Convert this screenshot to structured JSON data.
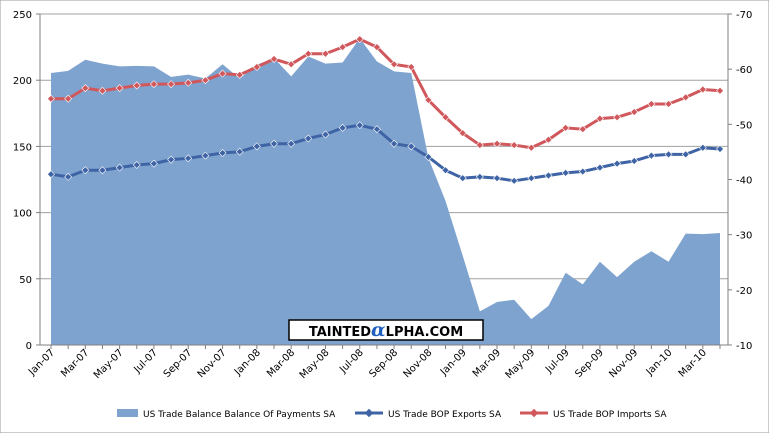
{
  "chart_data": {
    "type": "area+line",
    "categories": [
      "Jan-07",
      "Feb-07",
      "Mar-07",
      "Apr-07",
      "May-07",
      "Jun-07",
      "Jul-07",
      "Aug-07",
      "Sep-07",
      "Oct-07",
      "Nov-07",
      "Dec-07",
      "Jan-08",
      "Feb-08",
      "Mar-08",
      "Apr-08",
      "May-08",
      "Jun-08",
      "Jul-08",
      "Aug-08",
      "Sep-08",
      "Oct-08",
      "Nov-08",
      "Dec-08",
      "Jan-09",
      "Feb-09",
      "Mar-09",
      "Apr-09",
      "May-09",
      "Jun-09",
      "Jul-09",
      "Aug-09",
      "Sep-09",
      "Oct-09",
      "Nov-09",
      "Dec-09",
      "Jan-10",
      "Feb-10",
      "Mar-10",
      "Apr-10"
    ],
    "x_tick_labels": [
      "Jan-07",
      "Mar-07",
      "May-07",
      "Jul-07",
      "Sep-07",
      "Nov-07",
      "Jan-08",
      "Mar-08",
      "May-08",
      "Jul-08",
      "Sep-08",
      "Nov-08",
      "Jan-09",
      "Mar-09",
      "May-09",
      "Jul-09",
      "Sep-09",
      "Nov-09",
      "Jan-10",
      "Mar-10"
    ],
    "y_left": {
      "min": 0,
      "max": 250,
      "ticks": [
        "0",
        "50",
        "100",
        "150",
        "200",
        "250"
      ]
    },
    "y_right": {
      "min": -10,
      "max": -70,
      "ticks": [
        "-10",
        "-20",
        "-30",
        "-40",
        "-50",
        "-60",
        "-70"
      ]
    },
    "grid": "horizontal",
    "legend_position": "bottom",
    "series": [
      {
        "name": "US Trade Balance Balance Of Payments SA",
        "kind": "area",
        "axis": "right",
        "color": "#7fa3cf",
        "values": [
          -59.3,
          -59.7,
          -61.7,
          -61.0,
          -60.5,
          -60.6,
          -60.5,
          -58.6,
          -59.0,
          -58.3,
          -60.9,
          -58.3,
          -60.8,
          -62.0,
          -58.7,
          -62.3,
          -61.0,
          -61.2,
          -65.6,
          -61.4,
          -59.6,
          -59.3,
          -43.9,
          -36.1,
          -26.2,
          -16.1,
          -17.8,
          -18.2,
          -14.7,
          -17.1,
          -23.1,
          -21.0,
          -25.1,
          -22.3,
          -25.1,
          -27.0,
          -25.1,
          -30.2,
          -30.1,
          -30.3
        ]
      },
      {
        "name": "US Trade BOP Exports SA",
        "kind": "line",
        "axis": "left",
        "color": "#3f64a5",
        "values": [
          129,
          127,
          132,
          132,
          134,
          136,
          137,
          140,
          141,
          143,
          145,
          146,
          150,
          152,
          152,
          156,
          159,
          164,
          166,
          163,
          152,
          150,
          142,
          132,
          126,
          127,
          126,
          124,
          126,
          128,
          130,
          131,
          134,
          137,
          139,
          143,
          144,
          144,
          149,
          148
        ]
      },
      {
        "name": "US Trade BOP Imports SA",
        "kind": "line",
        "axis": "left",
        "color": "#d0585c",
        "values": [
          186,
          186,
          194,
          192,
          194,
          196,
          197,
          197,
          198,
          200,
          205,
          204,
          210,
          216,
          212,
          220,
          220,
          225,
          231,
          225,
          212,
          210,
          185,
          172,
          160,
          151,
          152,
          151,
          149,
          155,
          164,
          163,
          171,
          172,
          176,
          182,
          182,
          187,
          193,
          192
        ]
      }
    ]
  },
  "watermark": {
    "text": "TAINTEDALPHA.COM",
    "parts": [
      "TAINTED",
      "α",
      "LPHA.COM"
    ]
  }
}
